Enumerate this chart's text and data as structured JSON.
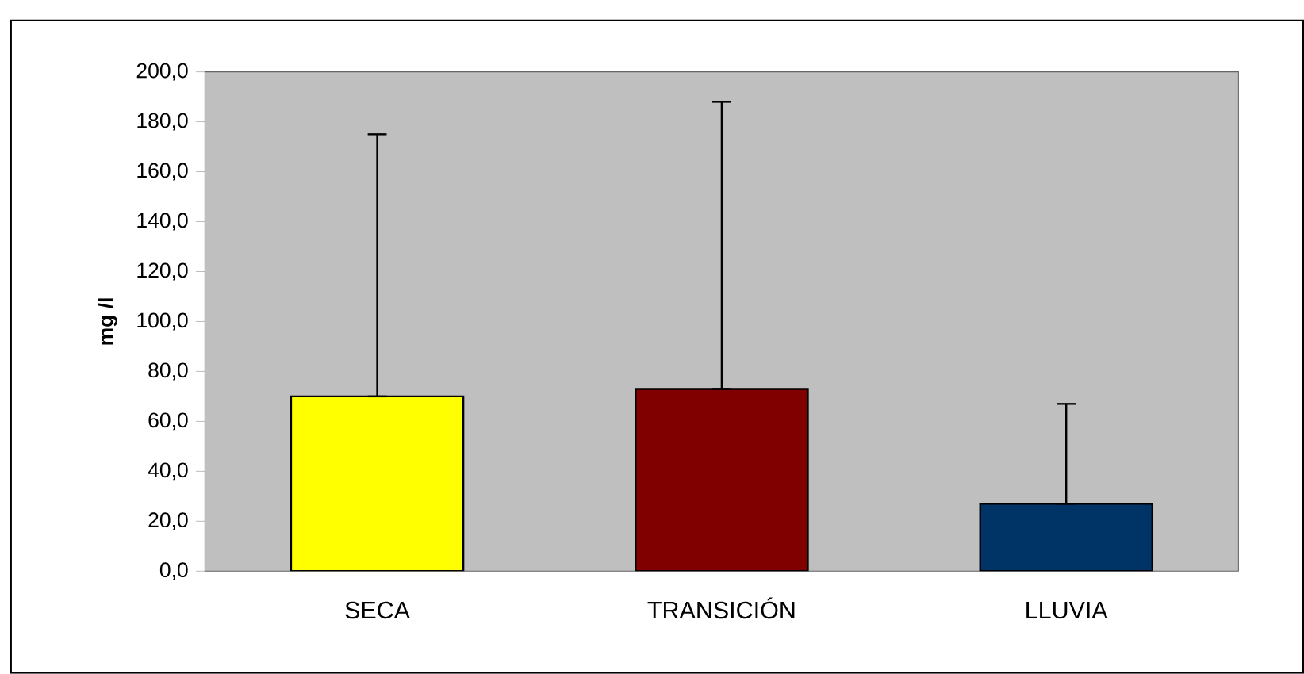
{
  "chart_data": {
    "type": "bar",
    "ylabel": "mg /l",
    "categories": [
      "SECA",
      "TRANSICIÓN",
      "LLUVIA"
    ],
    "values": [
      70,
      73,
      27
    ],
    "colors": [
      "#ffff00",
      "#800000",
      "#003366"
    ],
    "errors": [
      [
        70,
        175
      ],
      [
        73,
        188
      ],
      [
        27,
        67
      ]
    ],
    "ylim": [
      0,
      200
    ],
    "yticks": [
      {
        "value": 0,
        "label": "0,0"
      },
      {
        "value": 20,
        "label": "20,0"
      },
      {
        "value": 40,
        "label": "40,0"
      },
      {
        "value": 60,
        "label": "60,0"
      },
      {
        "value": 80,
        "label": "80,0"
      },
      {
        "value": 100,
        "label": "100,0"
      },
      {
        "value": 120,
        "label": "120,0"
      },
      {
        "value": 140,
        "label": "140,0"
      },
      {
        "value": 160,
        "label": "160,0"
      },
      {
        "value": 180,
        "label": "180,0"
      },
      {
        "value": 200,
        "label": "200,0"
      }
    ],
    "grid": false
  }
}
